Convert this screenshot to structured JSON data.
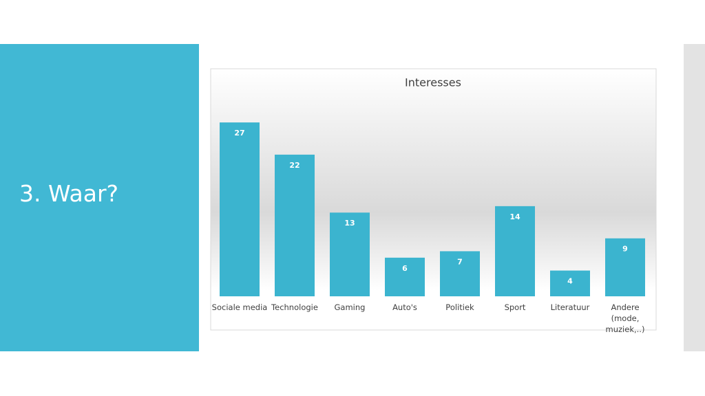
{
  "slide": {
    "title": "3. Waar?"
  },
  "chart_data": {
    "type": "bar",
    "title": "Interesses",
    "categories": [
      "Sociale media",
      "Technologie",
      "Gaming",
      "Auto's",
      "Politiek",
      "Sport",
      "Literatuur",
      "Andere (mode, muziek,..)"
    ],
    "values": [
      27,
      22,
      13,
      6,
      7,
      14,
      4,
      9
    ],
    "color": "#3bb4cf",
    "ylim": [
      0,
      30
    ],
    "grid": false
  }
}
